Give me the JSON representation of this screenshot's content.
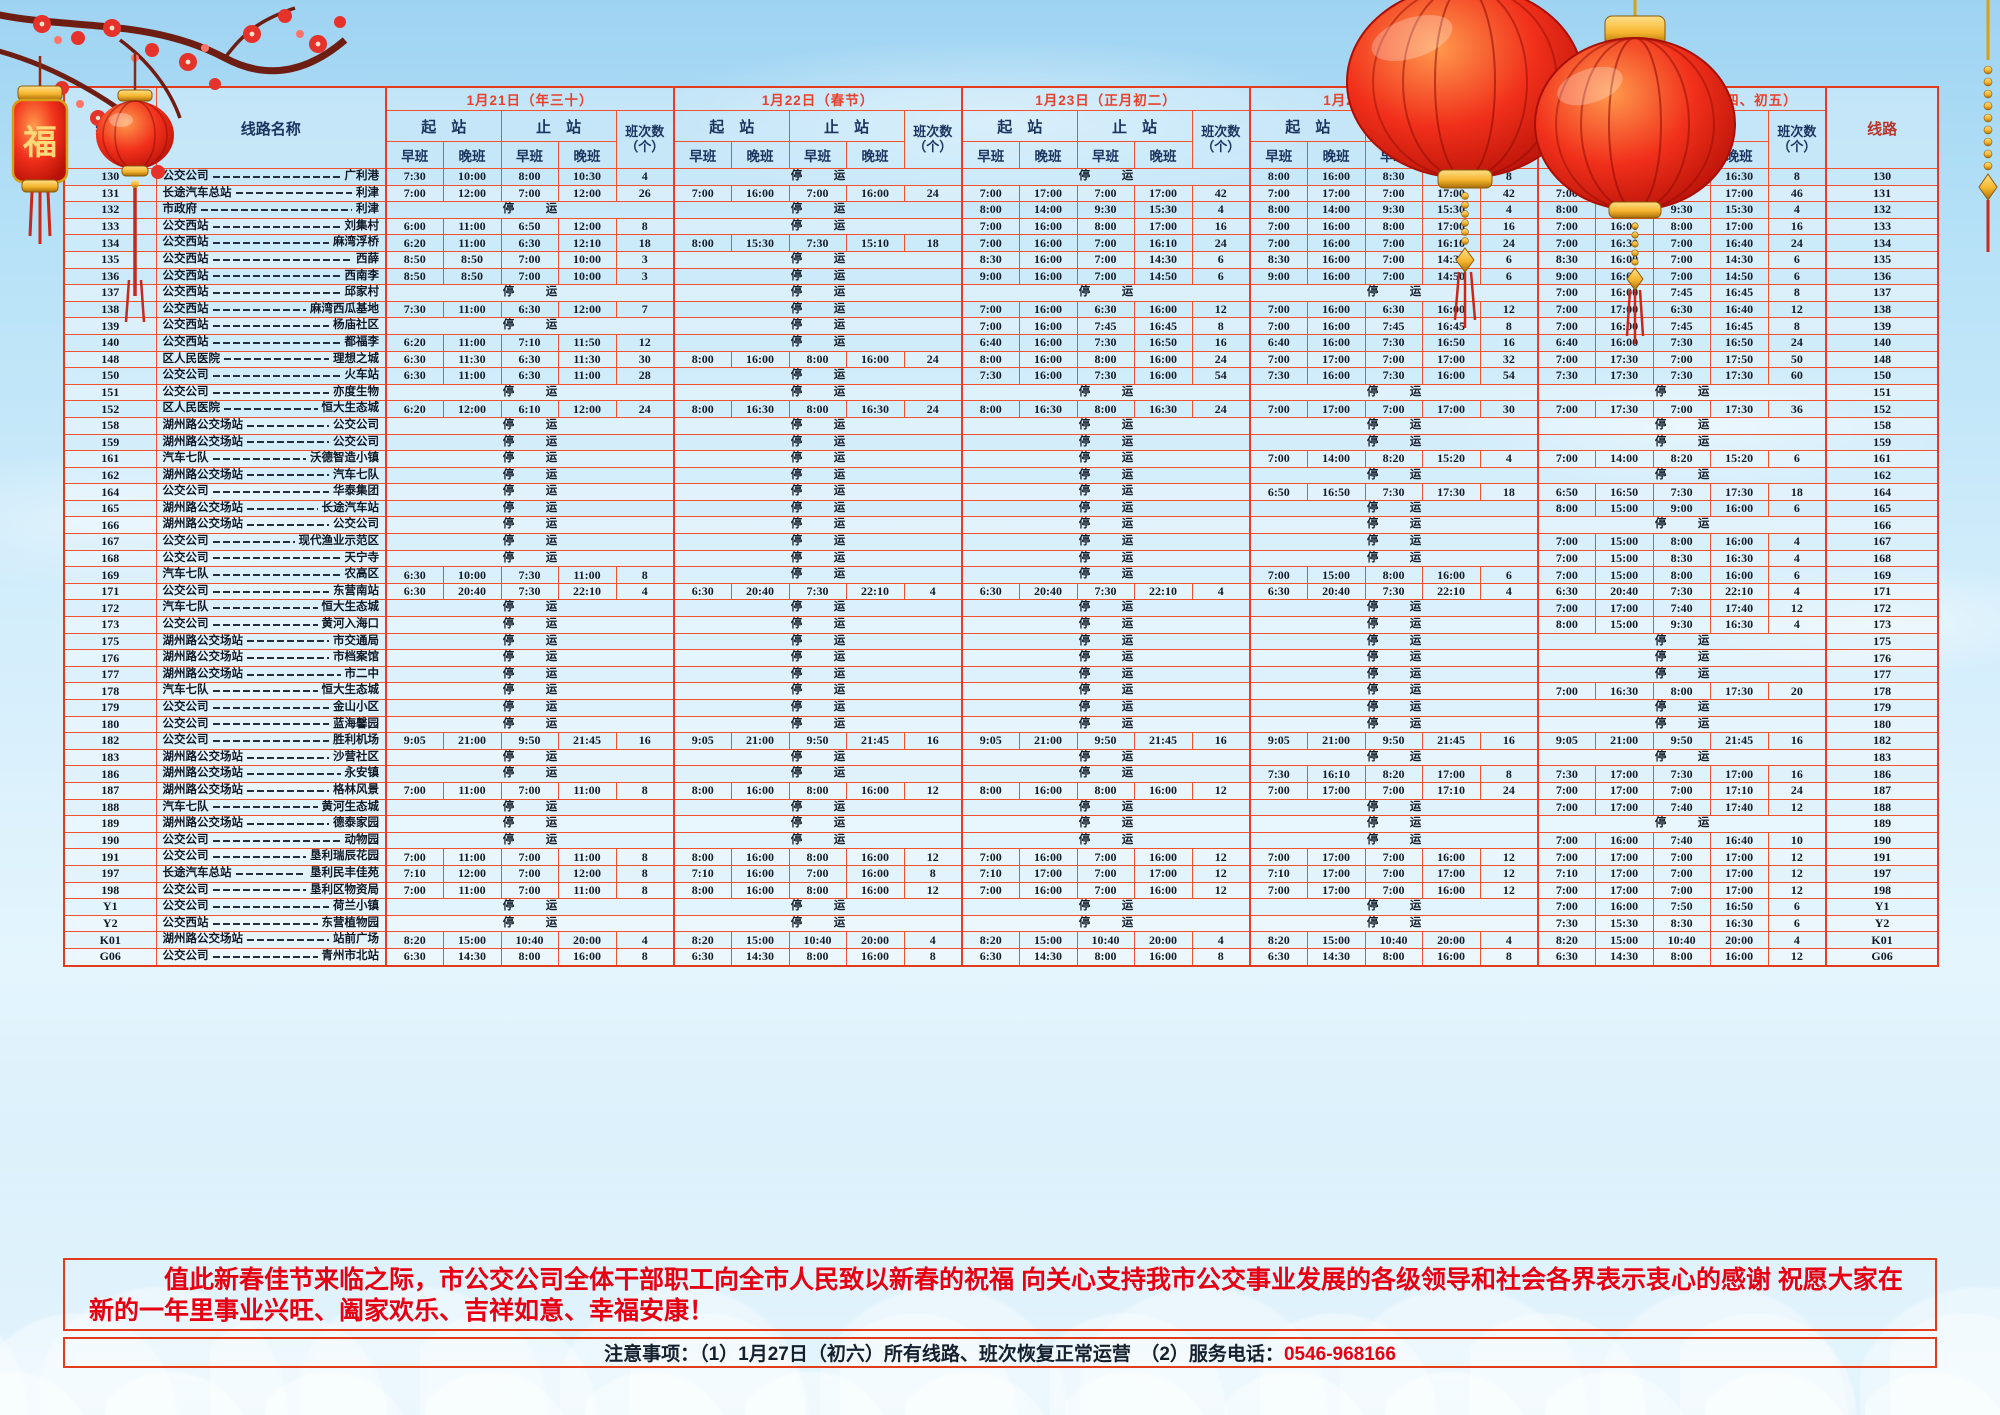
{
  "header": {
    "route_col": "线路",
    "name_col": "线路名称",
    "start": "起　站",
    "end": "止　站",
    "freq_line1": "班次数",
    "freq_line2": "（个）",
    "early": "早班",
    "late": "晚班",
    "dates": [
      "1月21日（年三十）",
      "1月22日（春节）",
      "1月23日（正月初二）",
      "1月24日（正月初三）",
      "1月25日、26日（正月初四、初五）"
    ]
  },
  "stop_label": "停　运",
  "rows": [
    {
      "route": "130",
      "from": "公交公司",
      "to": "广利港",
      "days": [
        [
          "7:30",
          "10:00",
          "8:00",
          "10:30",
          "4"
        ],
        "停　运",
        "停　运",
        [
          "8:00",
          "16:00",
          "8:30",
          "16:30",
          "8"
        ],
        [
          "8:00",
          "16:00",
          "8:30",
          "16:30",
          "8"
        ]
      ]
    },
    {
      "route": "131",
      "from": "长途汽车总站",
      "to": "利津",
      "days": [
        [
          "7:00",
          "12:00",
          "7:00",
          "12:00",
          "26"
        ],
        [
          "7:00",
          "16:00",
          "7:00",
          "16:00",
          "24"
        ],
        [
          "7:00",
          "17:00",
          "7:00",
          "17:00",
          "42"
        ],
        [
          "7:00",
          "17:00",
          "7:00",
          "17:00",
          "42"
        ],
        [
          "7:00",
          "17:00",
          "7:00",
          "17:00",
          "46"
        ]
      ]
    },
    {
      "route": "132",
      "from": "市政府",
      "to": "利津",
      "days": [
        "停　运",
        "停　运",
        [
          "8:00",
          "14:00",
          "9:30",
          "15:30",
          "4"
        ],
        [
          "8:00",
          "14:00",
          "9:30",
          "15:30",
          "4"
        ],
        [
          "8:00",
          "14:00",
          "9:30",
          "15:30",
          "4"
        ]
      ]
    },
    {
      "route": "133",
      "from": "公交西站",
      "to": "刘集村",
      "days": [
        [
          "6:00",
          "11:00",
          "6:50",
          "12:00",
          "8"
        ],
        "停　运",
        [
          "7:00",
          "16:00",
          "8:00",
          "17:00",
          "16"
        ],
        [
          "7:00",
          "16:00",
          "8:00",
          "17:00",
          "16"
        ],
        [
          "7:00",
          "16:00",
          "8:00",
          "17:00",
          "16"
        ]
      ]
    },
    {
      "route": "134",
      "from": "公交西站",
      "to": "麻湾浮桥",
      "days": [
        [
          "6:20",
          "11:00",
          "6:30",
          "12:10",
          "18"
        ],
        [
          "8:00",
          "15:30",
          "7:30",
          "15:10",
          "18"
        ],
        [
          "7:00",
          "16:00",
          "7:00",
          "16:10",
          "24"
        ],
        [
          "7:00",
          "16:00",
          "7:00",
          "16:10",
          "24"
        ],
        [
          "7:00",
          "16:30",
          "7:00",
          "16:40",
          "24"
        ]
      ]
    },
    {
      "route": "135",
      "from": "公交西站",
      "to": "西薛",
      "days": [
        [
          "8:50",
          "8:50",
          "7:00",
          "10:00",
          "3"
        ],
        "停　运",
        [
          "8:30",
          "16:00",
          "7:00",
          "14:30",
          "6"
        ],
        [
          "8:30",
          "16:00",
          "7:00",
          "14:30",
          "6"
        ],
        [
          "8:30",
          "16:00",
          "7:00",
          "14:30",
          "6"
        ]
      ]
    },
    {
      "route": "136",
      "from": "公交西站",
      "to": "西南李",
      "days": [
        [
          "8:50",
          "8:50",
          "7:00",
          "10:00",
          "3"
        ],
        "停　运",
        [
          "9:00",
          "16:00",
          "7:00",
          "14:50",
          "6"
        ],
        [
          "9:00",
          "16:00",
          "7:00",
          "14:50",
          "6"
        ],
        [
          "9:00",
          "16:00",
          "7:00",
          "14:50",
          "6"
        ]
      ]
    },
    {
      "route": "137",
      "from": "公交西站",
      "to": "邱家村",
      "days": [
        "停　运",
        "停　运",
        "停　运",
        "停　运",
        [
          "7:00",
          "16:00",
          "7:45",
          "16:45",
          "8"
        ]
      ]
    },
    {
      "route": "138",
      "from": "公交西站",
      "to": "麻湾西瓜基地",
      "days": [
        [
          "7:30",
          "11:00",
          "6:30",
          "12:00",
          "7"
        ],
        "停　运",
        [
          "7:00",
          "16:00",
          "6:30",
          "16:00",
          "12"
        ],
        [
          "7:00",
          "16:00",
          "6:30",
          "16:00",
          "12"
        ],
        [
          "7:00",
          "17:00",
          "6:30",
          "16:40",
          "12"
        ]
      ]
    },
    {
      "route": "139",
      "from": "公交西站",
      "to": "杨庙社区",
      "days": [
        "停　运",
        "停　运",
        [
          "7:00",
          "16:00",
          "7:45",
          "16:45",
          "8"
        ],
        [
          "7:00",
          "16:00",
          "7:45",
          "16:45",
          "8"
        ],
        [
          "7:00",
          "16:00",
          "7:45",
          "16:45",
          "8"
        ]
      ]
    },
    {
      "route": "140",
      "from": "公交西站",
      "to": "都福李",
      "days": [
        [
          "6:20",
          "11:00",
          "7:10",
          "11:50",
          "12"
        ],
        "停　运",
        [
          "6:40",
          "16:00",
          "7:30",
          "16:50",
          "16"
        ],
        [
          "6:40",
          "16:00",
          "7:30",
          "16:50",
          "16"
        ],
        [
          "6:40",
          "16:00",
          "7:30",
          "16:50",
          "24"
        ]
      ]
    },
    {
      "route": "148",
      "from": "区人民医院",
      "to": "理想之城",
      "days": [
        [
          "6:30",
          "11:30",
          "6:30",
          "11:30",
          "30"
        ],
        [
          "8:00",
          "16:00",
          "8:00",
          "16:00",
          "24"
        ],
        [
          "8:00",
          "16:00",
          "8:00",
          "16:00",
          "24"
        ],
        [
          "7:00",
          "17:00",
          "7:00",
          "17:00",
          "32"
        ],
        [
          "7:00",
          "17:30",
          "7:00",
          "17:50",
          "50"
        ]
      ]
    },
    {
      "route": "150",
      "from": "公交公司",
      "to": "火车站",
      "days": [
        [
          "6:30",
          "11:00",
          "6:30",
          "11:00",
          "28"
        ],
        "停　运",
        [
          "7:30",
          "16:00",
          "7:30",
          "16:00",
          "54"
        ],
        [
          "7:30",
          "16:00",
          "7:30",
          "16:00",
          "54"
        ],
        [
          "7:30",
          "17:30",
          "7:30",
          "17:30",
          "60"
        ]
      ]
    },
    {
      "route": "151",
      "from": "公交公司",
      "to": "亦度生物",
      "days": [
        "停　运",
        "停　运",
        "停　运",
        "停　运",
        "停　运"
      ]
    },
    {
      "route": "152",
      "from": "区人民医院",
      "to": "恒大生态城",
      "days": [
        [
          "6:20",
          "12:00",
          "6:10",
          "12:00",
          "24"
        ],
        [
          "8:00",
          "16:30",
          "8:00",
          "16:30",
          "24"
        ],
        [
          "8:00",
          "16:30",
          "8:00",
          "16:30",
          "24"
        ],
        [
          "7:00",
          "17:00",
          "7:00",
          "17:00",
          "30"
        ],
        [
          "7:00",
          "17:30",
          "7:00",
          "17:30",
          "36"
        ]
      ]
    },
    {
      "route": "158",
      "from": "湖州路公交场站",
      "to": "公交公司",
      "days": [
        "停　运",
        "停　运",
        "停　运",
        "停　运",
        "停　运"
      ]
    },
    {
      "route": "159",
      "from": "湖州路公交场站",
      "to": "公交公司",
      "days": [
        "停　运",
        "停　运",
        "停　运",
        "停　运",
        "停　运"
      ]
    },
    {
      "route": "161",
      "from": "汽车七队",
      "to": "沃德智造小镇",
      "days": [
        "停　运",
        "停　运",
        "停　运",
        [
          "7:00",
          "14:00",
          "8:20",
          "15:20",
          "4"
        ],
        [
          "7:00",
          "14:00",
          "8:20",
          "15:20",
          "6"
        ]
      ]
    },
    {
      "route": "162",
      "from": "湖州路公交场站",
      "to": "汽车七队",
      "days": [
        "停　运",
        "停　运",
        "停　运",
        "停　运",
        "停　运"
      ]
    },
    {
      "route": "164",
      "from": "公交公司",
      "to": "华泰集团",
      "days": [
        "停　运",
        "停　运",
        "停　运",
        [
          "6:50",
          "16:50",
          "7:30",
          "17:30",
          "18"
        ],
        [
          "6:50",
          "16:50",
          "7:30",
          "17:30",
          "18"
        ]
      ]
    },
    {
      "route": "165",
      "from": "湖州路公交场站",
      "to": "长途汽车站",
      "days": [
        "停　运",
        "停　运",
        "停　运",
        "停　运",
        [
          "8:00",
          "15:00",
          "9:00",
          "16:00",
          "6"
        ]
      ]
    },
    {
      "route": "166",
      "from": "湖州路公交场站",
      "to": "公交公司",
      "days": [
        "停　运",
        "停　运",
        "停　运",
        "停　运",
        "停　运"
      ]
    },
    {
      "route": "167",
      "from": "公交公司",
      "to": "现代渔业示范区",
      "days": [
        "停　运",
        "停　运",
        "停　运",
        "停　运",
        [
          "7:00",
          "15:00",
          "8:00",
          "16:00",
          "4"
        ]
      ]
    },
    {
      "route": "168",
      "from": "公交公司",
      "to": "天宁寺",
      "days": [
        "停　运",
        "停　运",
        "停　运",
        "停　运",
        [
          "7:00",
          "15:00",
          "8:30",
          "16:30",
          "4"
        ]
      ]
    },
    {
      "route": "169",
      "from": "汽车七队",
      "to": "农高区",
      "days": [
        [
          "6:30",
          "10:00",
          "7:30",
          "11:00",
          "8"
        ],
        "停　运",
        "停　运",
        [
          "7:00",
          "15:00",
          "8:00",
          "16:00",
          "6"
        ],
        [
          "7:00",
          "15:00",
          "8:00",
          "16:00",
          "6"
        ]
      ]
    },
    {
      "route": "171",
      "from": "公交公司",
      "to": "东营南站",
      "days": [
        [
          "6:30",
          "20:40",
          "7:30",
          "22:10",
          "4"
        ],
        [
          "6:30",
          "20:40",
          "7:30",
          "22:10",
          "4"
        ],
        [
          "6:30",
          "20:40",
          "7:30",
          "22:10",
          "4"
        ],
        [
          "6:30",
          "20:40",
          "7:30",
          "22:10",
          "4"
        ],
        [
          "6:30",
          "20:40",
          "7:30",
          "22:10",
          "4"
        ]
      ]
    },
    {
      "route": "172",
      "from": "汽车七队",
      "to": "恒大生态城",
      "days": [
        "停　运",
        "停　运",
        "停　运",
        "停　运",
        [
          "7:00",
          "17:00",
          "7:40",
          "17:40",
          "12"
        ]
      ]
    },
    {
      "route": "173",
      "from": "公交公司",
      "to": "黄河入海口",
      "days": [
        "停　运",
        "停　运",
        "停　运",
        "停　运",
        [
          "8:00",
          "15:00",
          "9:30",
          "16:30",
          "4"
        ]
      ]
    },
    {
      "route": "175",
      "from": "湖州路公交场站",
      "to": "市交通局",
      "days": [
        "停　运",
        "停　运",
        "停　运",
        "停　运",
        "停　运"
      ]
    },
    {
      "route": "176",
      "from": "湖州路公交场站",
      "to": "市档案馆",
      "days": [
        "停　运",
        "停　运",
        "停　运",
        "停　运",
        "停　运"
      ]
    },
    {
      "route": "177",
      "from": "湖州路公交场站",
      "to": "市二中",
      "days": [
        "停　运",
        "停　运",
        "停　运",
        "停　运",
        "停　运"
      ]
    },
    {
      "route": "178",
      "from": "汽车七队",
      "to": "恒大生态城",
      "days": [
        "停　运",
        "停　运",
        "停　运",
        "停　运",
        [
          "7:00",
          "16:30",
          "8:00",
          "17:30",
          "20"
        ]
      ]
    },
    {
      "route": "179",
      "from": "公交公司",
      "to": "金山小区",
      "days": [
        "停　运",
        "停　运",
        "停　运",
        "停　运",
        "停　运"
      ]
    },
    {
      "route": "180",
      "from": "公交公司",
      "to": "蓝海馨园",
      "days": [
        "停　运",
        "停　运",
        "停　运",
        "停　运",
        "停　运"
      ]
    },
    {
      "route": "182",
      "from": "公交公司",
      "to": "胜利机场",
      "days": [
        [
          "9:05",
          "21:00",
          "9:50",
          "21:45",
          "16"
        ],
        [
          "9:05",
          "21:00",
          "9:50",
          "21:45",
          "16"
        ],
        [
          "9:05",
          "21:00",
          "9:50",
          "21:45",
          "16"
        ],
        [
          "9:05",
          "21:00",
          "9:50",
          "21:45",
          "16"
        ],
        [
          "9:05",
          "21:00",
          "9:50",
          "21:45",
          "16"
        ]
      ]
    },
    {
      "route": "183",
      "from": "湖州路公交场站",
      "to": "沙营社区",
      "days": [
        "停　运",
        "停　运",
        "停　运",
        "停　运",
        "停　运"
      ]
    },
    {
      "route": "186",
      "from": "湖州路公交场站",
      "to": "永安镇",
      "days": [
        "停　运",
        "停　运",
        "停　运",
        [
          "7:30",
          "16:10",
          "8:20",
          "17:00",
          "8"
        ],
        [
          "7:30",
          "17:00",
          "7:30",
          "17:00",
          "16"
        ]
      ]
    },
    {
      "route": "187",
      "from": "湖州路公交场站",
      "to": "格林风景",
      "days": [
        [
          "7:00",
          "11:00",
          "7:00",
          "11:00",
          "8"
        ],
        [
          "8:00",
          "16:00",
          "8:00",
          "16:00",
          "12"
        ],
        [
          "8:00",
          "16:00",
          "8:00",
          "16:00",
          "12"
        ],
        [
          "7:00",
          "17:00",
          "7:00",
          "17:10",
          "24"
        ],
        [
          "7:00",
          "17:00",
          "7:00",
          "17:10",
          "24"
        ]
      ]
    },
    {
      "route": "188",
      "from": "汽车七队",
      "to": "黄河生态城",
      "days": [
        "停　运",
        "停　运",
        "停　运",
        "停　运",
        [
          "7:00",
          "17:00",
          "7:40",
          "17:40",
          "12"
        ]
      ]
    },
    {
      "route": "189",
      "from": "湖州路公交场站",
      "to": "德泰家园",
      "days": [
        "停　运",
        "停　运",
        "停　运",
        "停　运",
        "停　运"
      ]
    },
    {
      "route": "190",
      "from": "公交公司",
      "to": "动物园",
      "days": [
        "停　运",
        "停　运",
        "停　运",
        "停　运",
        [
          "7:00",
          "16:00",
          "7:40",
          "16:40",
          "10"
        ]
      ]
    },
    {
      "route": "191",
      "from": "公交公司",
      "to": "垦利瑞辰花园",
      "days": [
        [
          "7:00",
          "11:00",
          "7:00",
          "11:00",
          "8"
        ],
        [
          "8:00",
          "16:00",
          "8:00",
          "16:00",
          "12"
        ],
        [
          "7:00",
          "16:00",
          "7:00",
          "16:00",
          "12"
        ],
        [
          "7:00",
          "17:00",
          "7:00",
          "16:00",
          "12"
        ],
        [
          "7:00",
          "17:00",
          "7:00",
          "17:00",
          "12"
        ]
      ]
    },
    {
      "route": "197",
      "from": "长途汽车总站",
      "to": "垦利民丰佳苑",
      "days": [
        [
          "7:10",
          "12:00",
          "7:00",
          "12:00",
          "8"
        ],
        [
          "7:10",
          "16:00",
          "7:00",
          "16:00",
          "8"
        ],
        [
          "7:10",
          "17:00",
          "7:00",
          "17:00",
          "12"
        ],
        [
          "7:10",
          "17:00",
          "7:00",
          "17:00",
          "12"
        ],
        [
          "7:10",
          "17:00",
          "7:00",
          "17:00",
          "12"
        ]
      ]
    },
    {
      "route": "198",
      "from": "公交公司",
      "to": "垦利区物资局",
      "days": [
        [
          "7:00",
          "11:00",
          "7:00",
          "11:00",
          "8"
        ],
        [
          "8:00",
          "16:00",
          "8:00",
          "16:00",
          "12"
        ],
        [
          "7:00",
          "16:00",
          "7:00",
          "16:00",
          "12"
        ],
        [
          "7:00",
          "17:00",
          "7:00",
          "16:00",
          "12"
        ],
        [
          "7:00",
          "17:00",
          "7:00",
          "17:00",
          "12"
        ]
      ]
    },
    {
      "route": "Y1",
      "from": "公交公司",
      "to": "荷兰小镇",
      "days": [
        "停　运",
        "停　运",
        "停　运",
        "停　运",
        [
          "7:00",
          "16:00",
          "7:50",
          "16:50",
          "6"
        ]
      ]
    },
    {
      "route": "Y2",
      "from": "公交西站",
      "to": "东营植物园",
      "days": [
        "停　运",
        "停　运",
        "停　运",
        "停　运",
        [
          "7:30",
          "15:30",
          "8:30",
          "16:30",
          "6"
        ]
      ]
    },
    {
      "route": "K01",
      "from": "湖州路公交场站",
      "to": "站前广场",
      "days": [
        [
          "8:20",
          "15:00",
          "10:40",
          "20:00",
          "4"
        ],
        [
          "8:20",
          "15:00",
          "10:40",
          "20:00",
          "4"
        ],
        [
          "8:20",
          "15:00",
          "10:40",
          "20:00",
          "4"
        ],
        [
          "8:20",
          "15:00",
          "10:40",
          "20:00",
          "4"
        ],
        [
          "8:20",
          "15:00",
          "10:40",
          "20:00",
          "4"
        ]
      ]
    },
    {
      "route": "G06",
      "from": "公交公司",
      "to": "青州市北站",
      "days": [
        [
          "6:30",
          "14:30",
          "8:00",
          "16:00",
          "8"
        ],
        [
          "6:30",
          "14:30",
          "8:00",
          "16:00",
          "8"
        ],
        [
          "6:30",
          "14:30",
          "8:00",
          "16:00",
          "8"
        ],
        [
          "6:30",
          "14:30",
          "8:00",
          "16:00",
          "8"
        ],
        [
          "6:30",
          "14:30",
          "8:00",
          "16:00",
          "12"
        ]
      ]
    }
  ],
  "footer": {
    "greeting": "值此新春佳节来临之际，市公交公司全体干部职工向全市人民致以新春的祝福 向关心支持我市公交事业发展的各级领导和社会各界表示衷心的感谢 祝愿大家在新的一年里事业兴旺、阖家欢乐、吉祥如意、幸福安康！",
    "notice_label": "注意事项：",
    "notice_item1": "（1）1月27日（初六）所有线路、班次恢复正常运营　",
    "notice_item2": "（2）服务电话：",
    "phone": "0546-968166"
  },
  "decorations": {
    "lantern_char": "福",
    "accent_red": "#e8402a",
    "lantern_red": "#e01c10",
    "gold": "#f５b52e"
  }
}
